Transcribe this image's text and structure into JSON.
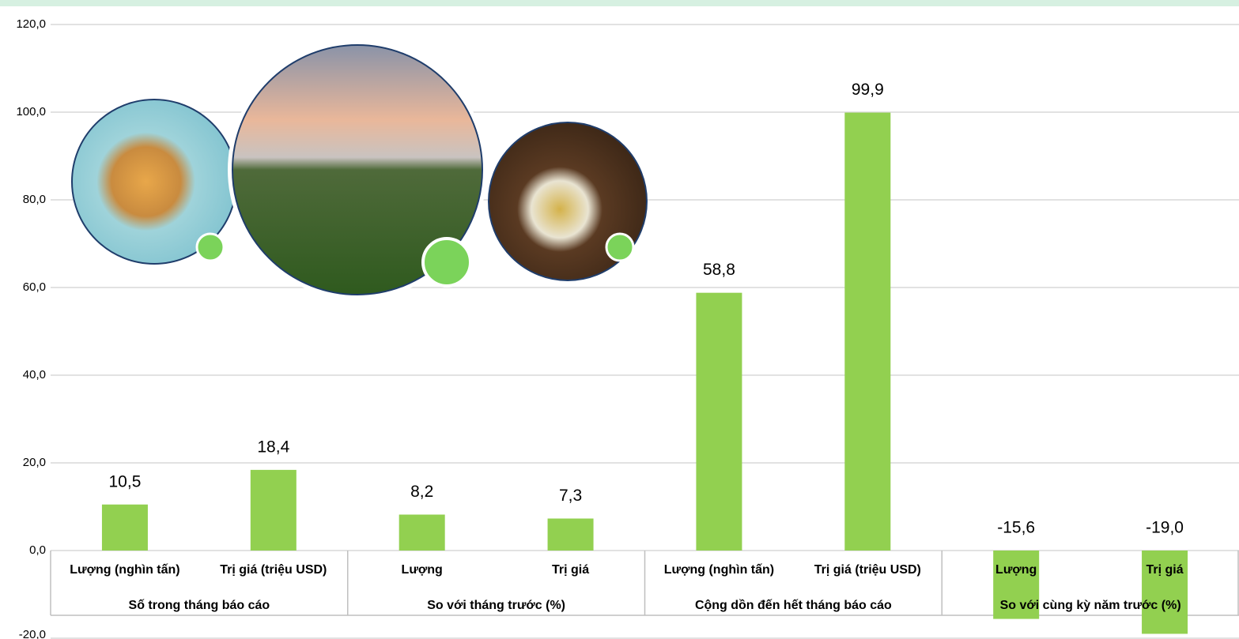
{
  "chart_data": {
    "type": "bar",
    "categories": [
      "Lượng (nghìn tấn)",
      "Trị giá (triệu USD)",
      "Lượng",
      "Trị giá",
      "Lượng (nghìn tấn)",
      "Trị giá (triệu USD)",
      "Lượng",
      "Trị giá"
    ],
    "groups": [
      "Số trong tháng báo cáo",
      "So với tháng trước (%)",
      "Cộng dồn đến hết tháng báo cáo",
      "So với cùng kỳ năm trước (%)"
    ],
    "values": [
      10.5,
      18.4,
      8.2,
      7.3,
      58.8,
      99.9,
      -15.6,
      -19.0
    ],
    "value_labels": [
      "10,5",
      "18,4",
      "8,2",
      "7,3",
      "58,8",
      "99,9",
      "-15,6",
      "-19,0"
    ],
    "color": "#92d050",
    "ylim": [
      -20,
      120
    ],
    "yticks": [
      {
        "value": -20,
        "label": "-20,0"
      },
      {
        "value": 0,
        "label": "0,0"
      },
      {
        "value": 20,
        "label": "20,0"
      },
      {
        "value": 40,
        "label": "40,0"
      },
      {
        "value": 60,
        "label": "60,0"
      },
      {
        "value": 80,
        "label": "80,0"
      },
      {
        "value": 100,
        "label": "100,0"
      },
      {
        "value": 120,
        "label": "120,0"
      }
    ],
    "grid": true
  }
}
